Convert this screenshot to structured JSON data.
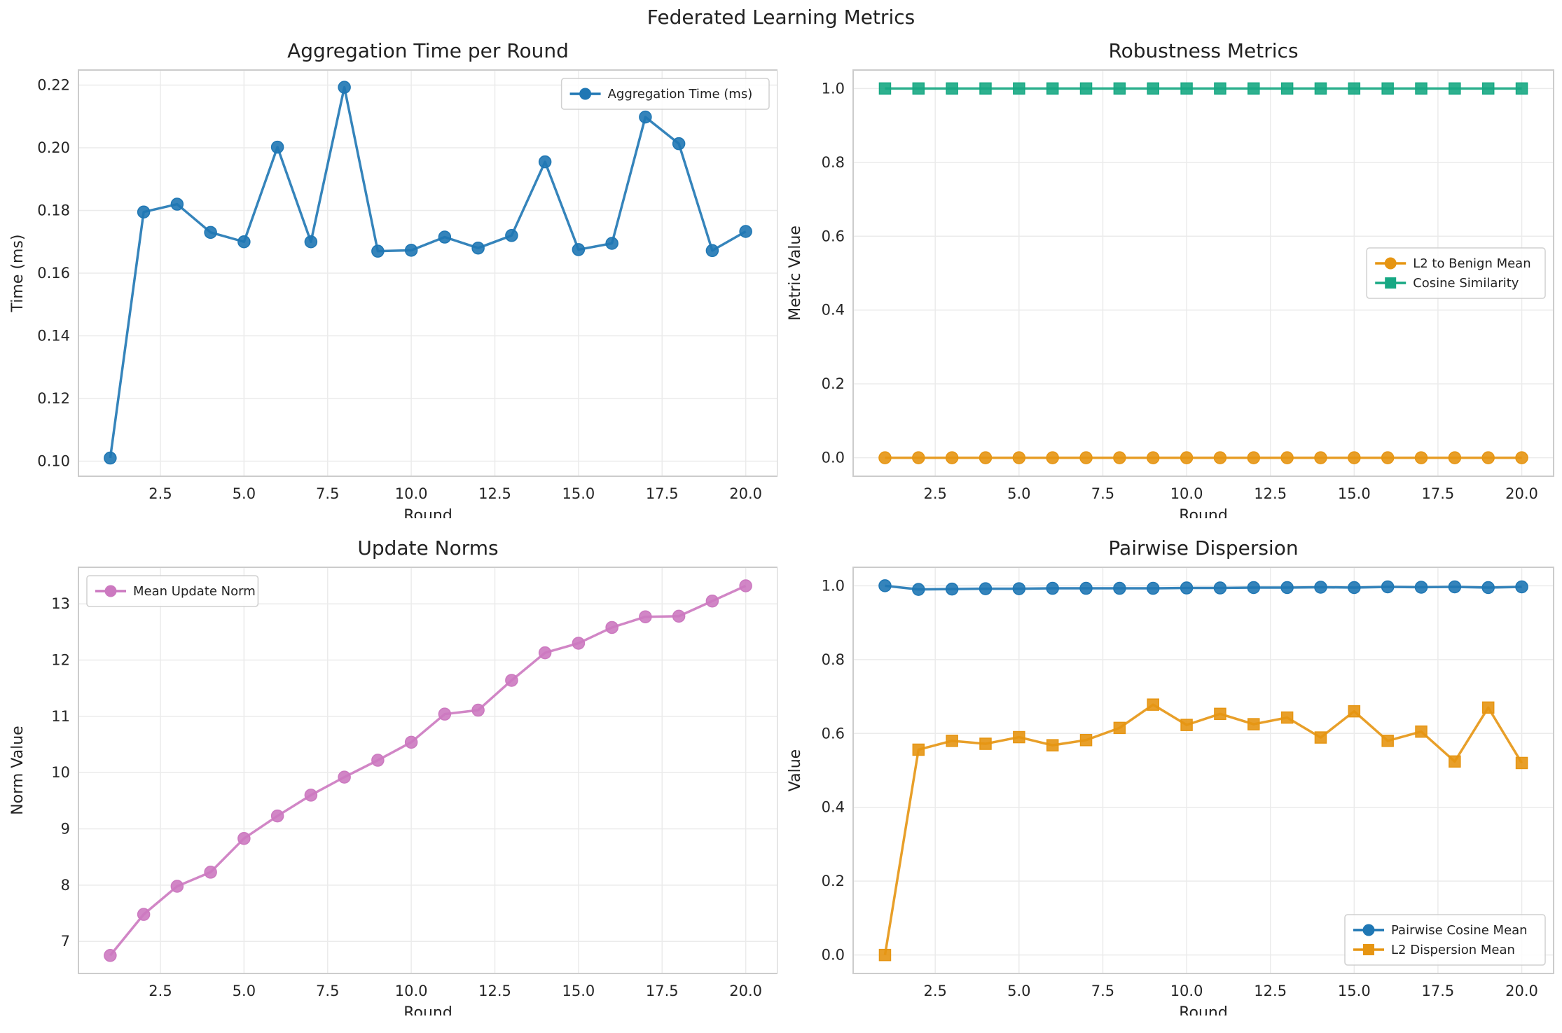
{
  "figure": {
    "suptitle": "Federated Learning Metrics"
  },
  "chart_data": [
    {
      "type": "line",
      "title": "Aggregation Time per Round",
      "xlabel": "Round",
      "ylabel": "Time (ms)",
      "xlim": [
        0.05,
        20.95
      ],
      "ylim": [
        0.0952,
        0.2248
      ],
      "xticks": [
        2.5,
        5.0,
        7.5,
        10.0,
        12.5,
        15.0,
        17.5,
        20.0
      ],
      "yticks": [
        0.1,
        0.12,
        0.14,
        0.16,
        0.18,
        0.2,
        0.22
      ],
      "ytick_decimals": 2,
      "grid": true,
      "legend_position": "top-right",
      "x": [
        1,
        2,
        3,
        4,
        5,
        6,
        7,
        8,
        9,
        10,
        11,
        12,
        13,
        14,
        15,
        16,
        17,
        18,
        19,
        20
      ],
      "series": [
        {
          "name": "Aggregation Time (ms)",
          "color": "#1f77b4",
          "marker": "circle",
          "values": [
            0.101,
            0.1795,
            0.182,
            0.173,
            0.17,
            0.2002,
            0.17,
            0.2193,
            0.167,
            0.1673,
            0.1715,
            0.168,
            0.172,
            0.1955,
            0.1675,
            0.1695,
            0.2098,
            0.2013,
            0.1672,
            0.1733
          ]
        }
      ]
    },
    {
      "type": "line",
      "title": "Robustness Metrics",
      "xlabel": "Round",
      "ylabel": "Metric Value",
      "xlim": [
        0.05,
        20.95
      ],
      "ylim": [
        -0.05,
        1.05
      ],
      "xticks": [
        2.5,
        5.0,
        7.5,
        10.0,
        12.5,
        15.0,
        17.5,
        20.0
      ],
      "yticks": [
        0.0,
        0.2,
        0.4,
        0.6,
        0.8,
        1.0
      ],
      "ytick_decimals": 1,
      "grid": true,
      "legend_position": "center-right",
      "x": [
        1,
        2,
        3,
        4,
        5,
        6,
        7,
        8,
        9,
        10,
        11,
        12,
        13,
        14,
        15,
        16,
        17,
        18,
        19,
        20
      ],
      "series": [
        {
          "name": "L2 to Benign Mean",
          "color": "#e69512",
          "marker": "circle",
          "values": [
            0,
            0,
            0,
            0,
            0,
            0,
            0,
            0,
            0,
            0,
            0,
            0,
            0,
            0,
            0,
            0,
            0,
            0,
            0,
            0
          ]
        },
        {
          "name": "Cosine Similarity",
          "color": "#17a883",
          "marker": "square",
          "values": [
            1,
            1,
            1,
            1,
            1,
            1,
            1,
            1,
            1,
            1,
            1,
            1,
            1,
            1,
            1,
            1,
            1,
            1,
            1,
            1
          ]
        }
      ]
    },
    {
      "type": "line",
      "title": "Update Norms",
      "xlabel": "Round",
      "ylabel": "Norm Value",
      "xlim": [
        0.05,
        20.95
      ],
      "ylim": [
        6.43,
        13.65
      ],
      "xticks": [
        2.5,
        5.0,
        7.5,
        10.0,
        12.5,
        15.0,
        17.5,
        20.0
      ],
      "yticks": [
        7,
        8,
        9,
        10,
        11,
        12,
        13
      ],
      "ytick_decimals": 0,
      "grid": true,
      "legend_position": "top-left",
      "x": [
        1,
        2,
        3,
        4,
        5,
        6,
        7,
        8,
        9,
        10,
        11,
        12,
        13,
        14,
        15,
        16,
        17,
        18,
        19,
        20
      ],
      "series": [
        {
          "name": "Mean Update Norm",
          "color": "#cc79c0",
          "marker": "circle",
          "values": [
            6.75,
            7.48,
            7.98,
            8.23,
            8.83,
            9.23,
            9.6,
            9.92,
            10.22,
            10.54,
            11.04,
            11.11,
            11.64,
            12.13,
            12.3,
            12.58,
            12.77,
            12.78,
            13.05,
            13.32
          ]
        }
      ]
    },
    {
      "type": "line",
      "title": "Pairwise Dispersion",
      "xlabel": "Round",
      "ylabel": "Value",
      "xlim": [
        0.05,
        20.95
      ],
      "ylim": [
        -0.05,
        1.05
      ],
      "xticks": [
        2.5,
        5.0,
        7.5,
        10.0,
        12.5,
        15.0,
        17.5,
        20.0
      ],
      "yticks": [
        0.0,
        0.2,
        0.4,
        0.6,
        0.8,
        1.0
      ],
      "ytick_decimals": 1,
      "grid": true,
      "legend_position": "bottom-right",
      "x": [
        1,
        2,
        3,
        4,
        5,
        6,
        7,
        8,
        9,
        10,
        11,
        12,
        13,
        14,
        15,
        16,
        17,
        18,
        19,
        20
      ],
      "series": [
        {
          "name": "Pairwise Cosine Mean",
          "color": "#1f77b4",
          "marker": "circle",
          "values": [
            1.0,
            0.99,
            0.991,
            0.992,
            0.992,
            0.993,
            0.993,
            0.993,
            0.993,
            0.994,
            0.994,
            0.995,
            0.995,
            0.996,
            0.995,
            0.997,
            0.996,
            0.997,
            0.995,
            0.997
          ]
        },
        {
          "name": "L2 Dispersion Mean",
          "color": "#e69512",
          "marker": "square",
          "values": [
            0.0,
            0.556,
            0.58,
            0.572,
            0.59,
            0.568,
            0.582,
            0.615,
            0.678,
            0.623,
            0.653,
            0.625,
            0.643,
            0.589,
            0.66,
            0.58,
            0.605,
            0.524,
            0.67,
            0.52
          ]
        }
      ]
    }
  ]
}
